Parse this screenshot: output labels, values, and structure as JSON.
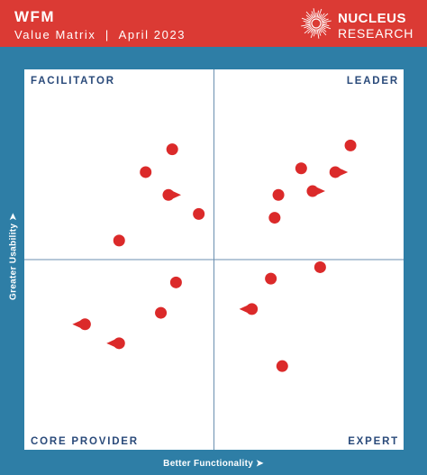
{
  "header": {
    "title": "WFM",
    "subtitle": "Value Matrix  |  April 2023",
    "brand_line1": "NUCLEUS",
    "brand_line2": "RESEARCH",
    "logo_icon": "nucleus-burst-icon"
  },
  "colors": {
    "header_bg": "#db3a34",
    "frame_bg": "#2e7ea6",
    "panel_bg": "#ffffff",
    "quad_label": "#2a4a7a",
    "point": "#db2a2a",
    "axis_line": "#6b8fb0"
  },
  "chart_data": {
    "type": "scatter",
    "title": "",
    "xlabel": "Better Functionality  ➤",
    "ylabel": "Greater Usability  ➤",
    "xlim": [
      0,
      10
    ],
    "ylim": [
      0,
      10
    ],
    "grid": false,
    "quadrant_divider": {
      "x": 5,
      "y": 5
    },
    "quadrants": {
      "top_left": "FACILITATOR",
      "top_right": "LEADER",
      "bottom_left": "CORE PROVIDER",
      "bottom_right": "EXPERT"
    },
    "points": [
      {
        "x": 3.9,
        "y": 7.9,
        "trend": "none"
      },
      {
        "x": 3.2,
        "y": 7.3,
        "trend": "none"
      },
      {
        "x": 3.8,
        "y": 6.7,
        "trend": "right"
      },
      {
        "x": 4.6,
        "y": 6.2,
        "trend": "none"
      },
      {
        "x": 2.5,
        "y": 5.5,
        "trend": "none"
      },
      {
        "x": 8.6,
        "y": 8.0,
        "trend": "none"
      },
      {
        "x": 8.2,
        "y": 7.3,
        "trend": "right"
      },
      {
        "x": 7.3,
        "y": 7.4,
        "trend": "none"
      },
      {
        "x": 7.6,
        "y": 6.8,
        "trend": "right"
      },
      {
        "x": 6.7,
        "y": 6.7,
        "trend": "none"
      },
      {
        "x": 6.6,
        "y": 6.1,
        "trend": "none"
      },
      {
        "x": 7.8,
        "y": 4.8,
        "trend": "none"
      },
      {
        "x": 6.5,
        "y": 4.5,
        "trend": "none"
      },
      {
        "x": 4.0,
        "y": 4.4,
        "trend": "none"
      },
      {
        "x": 6.0,
        "y": 3.7,
        "trend": "left"
      },
      {
        "x": 3.6,
        "y": 3.6,
        "trend": "none"
      },
      {
        "x": 1.6,
        "y": 3.3,
        "trend": "left"
      },
      {
        "x": 2.5,
        "y": 2.8,
        "trend": "left"
      },
      {
        "x": 6.8,
        "y": 2.2,
        "trend": "none"
      }
    ]
  }
}
